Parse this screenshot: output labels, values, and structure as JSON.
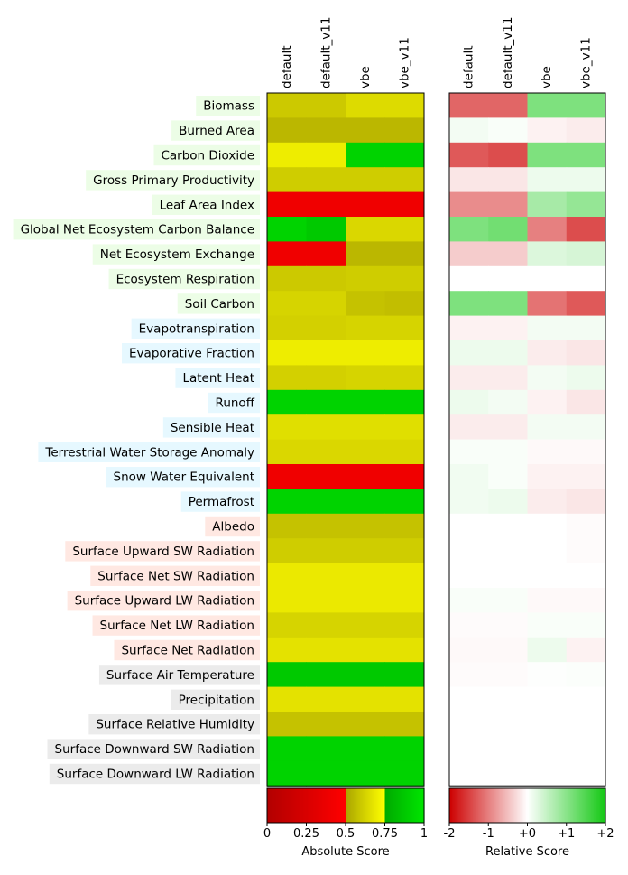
{
  "chart_data": {
    "type": "heatmap",
    "columns": [
      "default",
      "default_v11",
      "vbe",
      "vbe_v11"
    ],
    "rows": [
      {
        "label": "Biomass",
        "group": "ecosystem"
      },
      {
        "label": "Burned Area",
        "group": "ecosystem"
      },
      {
        "label": "Carbon Dioxide",
        "group": "ecosystem"
      },
      {
        "label": "Gross Primary Productivity",
        "group": "ecosystem"
      },
      {
        "label": "Leaf Area Index",
        "group": "ecosystem"
      },
      {
        "label": "Global Net Ecosystem Carbon Balance",
        "group": "ecosystem"
      },
      {
        "label": "Net Ecosystem Exchange",
        "group": "ecosystem"
      },
      {
        "label": "Ecosystem Respiration",
        "group": "ecosystem"
      },
      {
        "label": "Soil Carbon",
        "group": "ecosystem"
      },
      {
        "label": "Evapotranspiration",
        "group": "hydrology"
      },
      {
        "label": "Evaporative Fraction",
        "group": "hydrology"
      },
      {
        "label": "Latent Heat",
        "group": "hydrology"
      },
      {
        "label": "Runoff",
        "group": "hydrology"
      },
      {
        "label": "Sensible Heat",
        "group": "hydrology"
      },
      {
        "label": "Terrestrial Water Storage Anomaly",
        "group": "hydrology"
      },
      {
        "label": "Snow Water Equivalent",
        "group": "hydrology"
      },
      {
        "label": "Permafrost",
        "group": "hydrology"
      },
      {
        "label": "Albedo",
        "group": "radiation"
      },
      {
        "label": "Surface Upward SW Radiation",
        "group": "radiation"
      },
      {
        "label": "Surface Net SW Radiation",
        "group": "radiation"
      },
      {
        "label": "Surface Upward LW Radiation",
        "group": "radiation"
      },
      {
        "label": "Surface Net LW Radiation",
        "group": "radiation"
      },
      {
        "label": "Surface Net Radiation",
        "group": "radiation"
      },
      {
        "label": "Surface Air Temperature",
        "group": "forcing"
      },
      {
        "label": "Precipitation",
        "group": "forcing"
      },
      {
        "label": "Surface Relative Humidity",
        "group": "forcing"
      },
      {
        "label": "Surface Downward SW Radiation",
        "group": "forcing"
      },
      {
        "label": "Surface Downward LW Radiation",
        "group": "forcing"
      }
    ],
    "absolute_scores": [
      [
        0.6,
        0.6,
        0.65,
        0.65
      ],
      [
        0.55,
        0.55,
        0.55,
        0.55
      ],
      [
        0.7,
        0.7,
        0.92,
        0.92
      ],
      [
        0.61,
        0.61,
        0.61,
        0.61
      ],
      [
        0.4,
        0.4,
        0.4,
        0.4
      ],
      [
        0.92,
        0.88,
        0.64,
        0.64
      ],
      [
        0.4,
        0.4,
        0.55,
        0.55
      ],
      [
        0.6,
        0.6,
        0.61,
        0.61
      ],
      [
        0.63,
        0.63,
        0.58,
        0.57
      ],
      [
        0.62,
        0.62,
        0.63,
        0.63
      ],
      [
        0.7,
        0.7,
        0.7,
        0.7
      ],
      [
        0.62,
        0.62,
        0.63,
        0.63
      ],
      [
        0.92,
        0.92,
        0.92,
        0.92
      ],
      [
        0.66,
        0.66,
        0.66,
        0.66
      ],
      [
        0.64,
        0.64,
        0.64,
        0.64
      ],
      [
        0.4,
        0.4,
        0.4,
        0.4
      ],
      [
        0.92,
        0.92,
        0.92,
        0.92
      ],
      [
        0.58,
        0.58,
        0.58,
        0.58
      ],
      [
        0.61,
        0.61,
        0.61,
        0.61
      ],
      [
        0.69,
        0.69,
        0.69,
        0.69
      ],
      [
        0.69,
        0.69,
        0.69,
        0.69
      ],
      [
        0.63,
        0.63,
        0.63,
        0.63
      ],
      [
        0.67,
        0.67,
        0.67,
        0.67
      ],
      [
        0.88,
        0.88,
        0.88,
        0.88
      ],
      [
        0.67,
        0.67,
        0.67,
        0.67
      ],
      [
        0.58,
        0.58,
        0.58,
        0.58
      ],
      [
        0.92,
        0.92,
        0.92,
        0.92
      ],
      [
        0.92,
        0.92,
        0.92,
        0.92
      ]
    ],
    "relative_scores": [
      [
        -1.2,
        -1.2,
        1.1,
        1.1
      ],
      [
        0.1,
        0.05,
        -0.1,
        -0.15
      ],
      [
        -1.3,
        -1.4,
        1.1,
        1.1
      ],
      [
        -0.2,
        -0.2,
        0.15,
        0.15
      ],
      [
        -0.9,
        -0.9,
        0.75,
        0.9
      ],
      [
        1.1,
        1.2,
        -1.0,
        -1.4
      ],
      [
        -0.4,
        -0.4,
        0.3,
        0.35
      ],
      [
        0.0,
        0.0,
        0.0,
        0.0
      ],
      [
        1.1,
        1.1,
        -1.1,
        -1.3
      ],
      [
        -0.1,
        -0.1,
        0.1,
        0.1
      ],
      [
        0.15,
        0.15,
        -0.15,
        -0.2
      ],
      [
        -0.15,
        -0.15,
        0.1,
        0.15
      ],
      [
        0.15,
        0.1,
        -0.1,
        -0.2
      ],
      [
        -0.15,
        -0.15,
        0.1,
        0.1
      ],
      [
        0.05,
        0.05,
        -0.05,
        -0.05
      ],
      [
        0.12,
        0.05,
        -0.1,
        -0.1
      ],
      [
        0.12,
        0.15,
        -0.15,
        -0.2
      ],
      [
        0.0,
        0.0,
        0.0,
        -0.03
      ],
      [
        0.0,
        0.0,
        0.0,
        -0.03
      ],
      [
        0.0,
        0.0,
        0.0,
        0.0
      ],
      [
        0.05,
        0.05,
        -0.05,
        -0.05
      ],
      [
        -0.03,
        -0.03,
        0.05,
        0.05
      ],
      [
        -0.05,
        -0.05,
        0.15,
        -0.1
      ],
      [
        -0.03,
        -0.03,
        0.02,
        0.03
      ],
      [
        0.0,
        0.0,
        0.0,
        0.0
      ],
      [
        0.0,
        0.0,
        0.0,
        0.0
      ],
      [
        0.0,
        0.0,
        0.0,
        0.0
      ],
      [
        0.0,
        0.0,
        0.0,
        0.0
      ]
    ],
    "absolute_colorbar": {
      "title": "Absolute Score",
      "ticks": [
        {
          "value": 0,
          "label": "0"
        },
        {
          "value": 0.25,
          "label": "0.25"
        },
        {
          "value": 0.5,
          "label": "0.5"
        },
        {
          "value": 0.75,
          "label": "0.75"
        },
        {
          "value": 1,
          "label": "1"
        }
      ],
      "range": [
        0,
        1
      ]
    },
    "relative_colorbar": {
      "title": "Relative Score",
      "ticks": [
        {
          "value": -2,
          "label": "-2"
        },
        {
          "value": -1,
          "label": "-1"
        },
        {
          "value": 0,
          "label": "+0"
        },
        {
          "value": 1,
          "label": "+1"
        },
        {
          "value": 2,
          "label": "+2"
        }
      ],
      "range": [
        -2,
        2
      ]
    },
    "group_colors": {
      "ecosystem": "#ecfde6",
      "hydrology": "#e6f8ff",
      "radiation": "#ffe8e2",
      "forcing": "#ebebeb"
    }
  }
}
